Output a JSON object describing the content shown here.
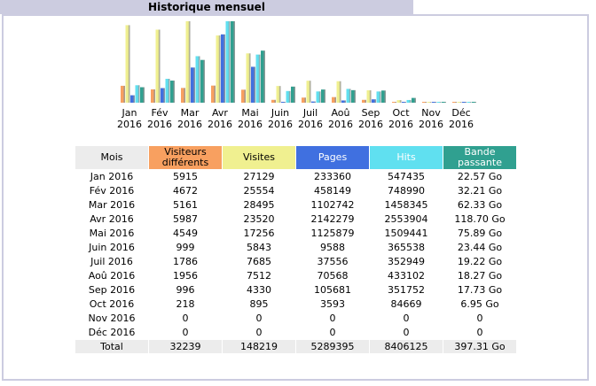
{
  "section_title": "Historique mensuel",
  "headers": {
    "month": "Mois",
    "visitors": "Visiteurs différents",
    "visits": "Visites",
    "pages": "Pages",
    "hits": "Hits",
    "bandwidth": "Bande passante"
  },
  "colors": {
    "title_bar": "#cccce0",
    "visitors": "#f8a060",
    "visits": "#f0f090",
    "pages": "#4070e0",
    "hits": "#60e0f0",
    "bandwidth": "#30a090",
    "month_header": "#ececec",
    "total_row": "#ececec"
  },
  "rows": [
    {
      "month": "Jan 2016",
      "visitors": "5915",
      "visits": "27129",
      "pages": "233360",
      "hits": "547435",
      "bandwidth": "22.57 Go"
    },
    {
      "month": "Fév 2016",
      "visitors": "4672",
      "visits": "25554",
      "pages": "458149",
      "hits": "748990",
      "bandwidth": "32.21 Go"
    },
    {
      "month": "Mar 2016",
      "visitors": "5161",
      "visits": "28495",
      "pages": "1102742",
      "hits": "1458345",
      "bandwidth": "62.33 Go"
    },
    {
      "month": "Avr 2016",
      "visitors": "5987",
      "visits": "23520",
      "pages": "2142279",
      "hits": "2553904",
      "bandwidth": "118.70 Go"
    },
    {
      "month": "Mai 2016",
      "visitors": "4549",
      "visits": "17256",
      "pages": "1125879",
      "hits": "1509441",
      "bandwidth": "75.89 Go"
    },
    {
      "month": "Juin 2016",
      "visitors": "999",
      "visits": "5843",
      "pages": "9588",
      "hits": "365538",
      "bandwidth": "23.44 Go"
    },
    {
      "month": "Juil 2016",
      "visitors": "1786",
      "visits": "7685",
      "pages": "37556",
      "hits": "352949",
      "bandwidth": "19.22 Go"
    },
    {
      "month": "Aoû 2016",
      "visitors": "1956",
      "visits": "7512",
      "pages": "70568",
      "hits": "433102",
      "bandwidth": "18.27 Go"
    },
    {
      "month": "Sep 2016",
      "visitors": "996",
      "visits": "4330",
      "pages": "105681",
      "hits": "351752",
      "bandwidth": "17.73 Go"
    },
    {
      "month": "Oct 2016",
      "visitors": "218",
      "visits": "895",
      "pages": "3593",
      "hits": "84669",
      "bandwidth": "6.95 Go"
    },
    {
      "month": "Nov 2016",
      "visitors": "0",
      "visits": "0",
      "pages": "0",
      "hits": "0",
      "bandwidth": "0"
    },
    {
      "month": "Déc 2016",
      "visitors": "0",
      "visits": "0",
      "pages": "0",
      "hits": "0",
      "bandwidth": "0"
    }
  ],
  "total": {
    "label": "Total",
    "visitors": "32239",
    "visits": "148219",
    "pages": "5289395",
    "hits": "8406125",
    "bandwidth": "397.31 Go"
  },
  "chart_data": {
    "type": "bar",
    "categories": [
      [
        "Jan",
        "2016"
      ],
      [
        "Fév",
        "2016"
      ],
      [
        "Mar",
        "2016"
      ],
      [
        "Avr",
        "2016"
      ],
      [
        "Mai",
        "2016"
      ],
      [
        "Juin",
        "2016"
      ],
      [
        "Juil",
        "2016"
      ],
      [
        "Aoû",
        "2016"
      ],
      [
        "Sep",
        "2016"
      ],
      [
        "Oct",
        "2016"
      ],
      [
        "Nov",
        "2016"
      ],
      [
        "Déc",
        "2016"
      ]
    ],
    "series": [
      {
        "key": "visitors",
        "values": [
          5915,
          4672,
          5161,
          5987,
          4549,
          999,
          1786,
          1956,
          996,
          218,
          0,
          0
        ]
      },
      {
        "key": "visits",
        "values": [
          27129,
          25554,
          28495,
          23520,
          17256,
          5843,
          7685,
          7512,
          4330,
          895,
          0,
          0
        ]
      },
      {
        "key": "pages",
        "values": [
          233360,
          458149,
          1102742,
          2142279,
          1125879,
          9588,
          37556,
          70568,
          105681,
          3593,
          0,
          0
        ]
      },
      {
        "key": "hits",
        "values": [
          547435,
          748990,
          1458345,
          2553904,
          1509441,
          365538,
          352949,
          433102,
          351752,
          84669,
          0,
          0
        ]
      },
      {
        "key": "bandwidth",
        "values": [
          22.57,
          32.21,
          62.33,
          118.7,
          75.89,
          23.44,
          19.22,
          18.27,
          17.73,
          6.95,
          0,
          0
        ]
      }
    ],
    "scale_groups": [
      [
        "visitors",
        "visits"
      ],
      [
        "pages",
        "hits"
      ],
      [
        "bandwidth"
      ]
    ]
  }
}
